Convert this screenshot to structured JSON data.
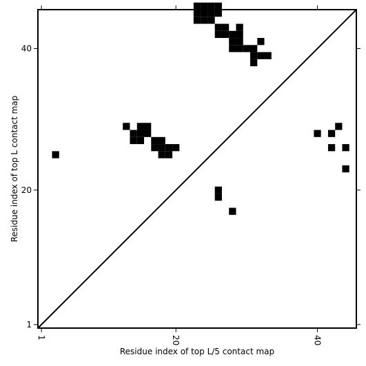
{
  "chart_data": {
    "type": "heatmap",
    "title": "",
    "xlabel": "Residue index of top L/5 contact map",
    "ylabel": "Residue index of top L contact map",
    "xlim": [
      0.5,
      45.5
    ],
    "ylim": [
      0.5,
      45.5
    ],
    "x_ticks": [
      1,
      20,
      40
    ],
    "y_ticks": [
      1,
      20,
      40
    ],
    "x_tick_rotation": -90,
    "grid": false,
    "cell_color": "#000000",
    "background_color": "#ffffff",
    "diagonal": {
      "from": [
        0.5,
        0.5
      ],
      "to": [
        45.5,
        45.5
      ],
      "color": "#000000"
    },
    "cells": [
      [
        23,
        44
      ],
      [
        23,
        45
      ],
      [
        23,
        46
      ],
      [
        24,
        44
      ],
      [
        24,
        45
      ],
      [
        24,
        46
      ],
      [
        25,
        44
      ],
      [
        25,
        45
      ],
      [
        25,
        46
      ],
      [
        26,
        45
      ],
      [
        26,
        46
      ],
      [
        26,
        42
      ],
      [
        26,
        43
      ],
      [
        27,
        42
      ],
      [
        27,
        43
      ],
      [
        28,
        40
      ],
      [
        28,
        41
      ],
      [
        28,
        42
      ],
      [
        29,
        40
      ],
      [
        29,
        41
      ],
      [
        29,
        42
      ],
      [
        29,
        43
      ],
      [
        30,
        40
      ],
      [
        31,
        40
      ],
      [
        31,
        38
      ],
      [
        31,
        39
      ],
      [
        32,
        39
      ],
      [
        33,
        39
      ],
      [
        32,
        41
      ],
      [
        3,
        25
      ],
      [
        13,
        29
      ],
      [
        14,
        27
      ],
      [
        14,
        28
      ],
      [
        15,
        27
      ],
      [
        15,
        28
      ],
      [
        15,
        29
      ],
      [
        16,
        28
      ],
      [
        16,
        29
      ],
      [
        17,
        26
      ],
      [
        17,
        27
      ],
      [
        18,
        25
      ],
      [
        18,
        26
      ],
      [
        18,
        27
      ],
      [
        19,
        25
      ],
      [
        19,
        26
      ],
      [
        20,
        26
      ],
      [
        40,
        28
      ],
      [
        42,
        26
      ],
      [
        42,
        28
      ],
      [
        43,
        29
      ],
      [
        44,
        23
      ],
      [
        44,
        26
      ],
      [
        26,
        19
      ],
      [
        26,
        20
      ],
      [
        28,
        17
      ]
    ]
  }
}
